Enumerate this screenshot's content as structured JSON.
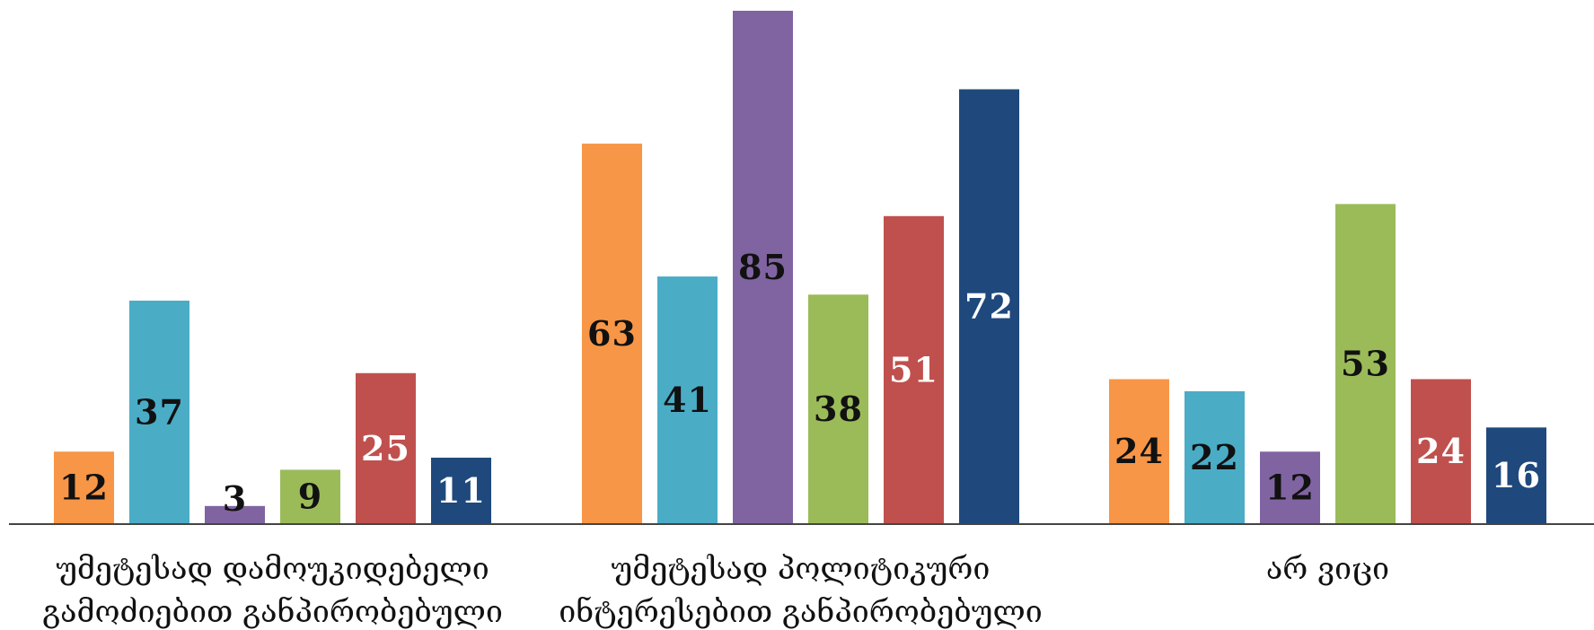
{
  "chart_data": {
    "type": "bar",
    "categories": [
      [
        "უმეტესად დამოუკიდებელი",
        "გამოძიებით განპირობებული"
      ],
      [
        "უმეტესად პოლიტიკური",
        "ინტერესებით განპირობებული"
      ],
      [
        "არ ვიცი"
      ]
    ],
    "series": [
      {
        "values": [
          12,
          63,
          24
        ],
        "color": "#F79646",
        "label_color": "#111111"
      },
      {
        "values": [
          37,
          41,
          22
        ],
        "color": "#4BACC6",
        "label_color": "#111111"
      },
      {
        "values": [
          3,
          85,
          12
        ],
        "color": "#8064A2",
        "label_color": "#111111"
      },
      {
        "values": [
          9,
          38,
          53
        ],
        "color": "#9BBB59",
        "label_color": "#111111"
      },
      {
        "values": [
          25,
          51,
          24
        ],
        "color": "#C0504D",
        "label_color": "#ffffff"
      },
      {
        "values": [
          11,
          72,
          16
        ],
        "color": "#1F497D",
        "label_color": "#ffffff"
      }
    ],
    "ylim": [
      0,
      85
    ],
    "grid": false,
    "legend": "none",
    "title": "",
    "xlabel": "",
    "ylabel": ""
  }
}
